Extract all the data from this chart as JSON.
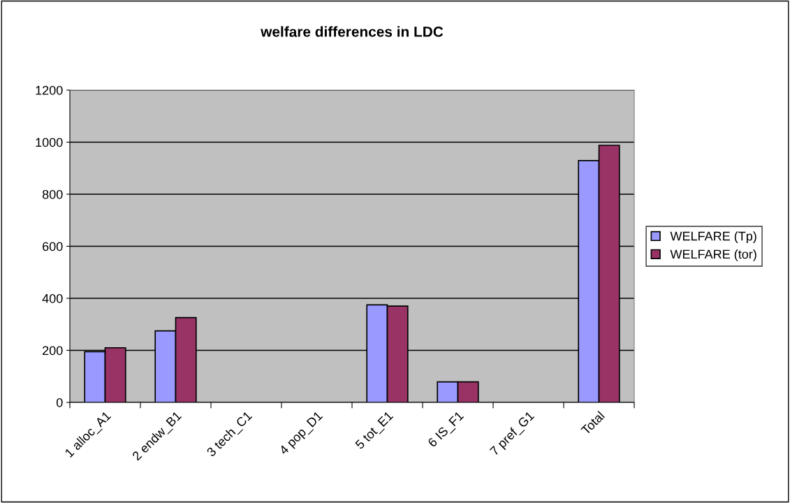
{
  "chart_data": {
    "type": "bar",
    "title": "welfare differences in LDC",
    "categories": [
      "1 alloc_A1",
      "2 endw_B1",
      "3 tech_C1",
      "4 pop_D1",
      "5 tot_E1",
      "6 IS_F1",
      "7 pref_G1",
      "Total"
    ],
    "series": [
      {
        "name": "WELFARE (Tp)",
        "color": "#9999ff",
        "values": [
          195,
          275,
          null,
          null,
          375,
          79,
          null,
          929
        ]
      },
      {
        "name": "WELFARE (tor)",
        "color": "#993366",
        "values": [
          210,
          326,
          null,
          null,
          370,
          79,
          null,
          988
        ]
      }
    ],
    "ylim": [
      0,
      1200
    ],
    "yticks": [
      0,
      200,
      400,
      600,
      800,
      1000,
      1200
    ],
    "grid": "y",
    "legend": "right"
  }
}
